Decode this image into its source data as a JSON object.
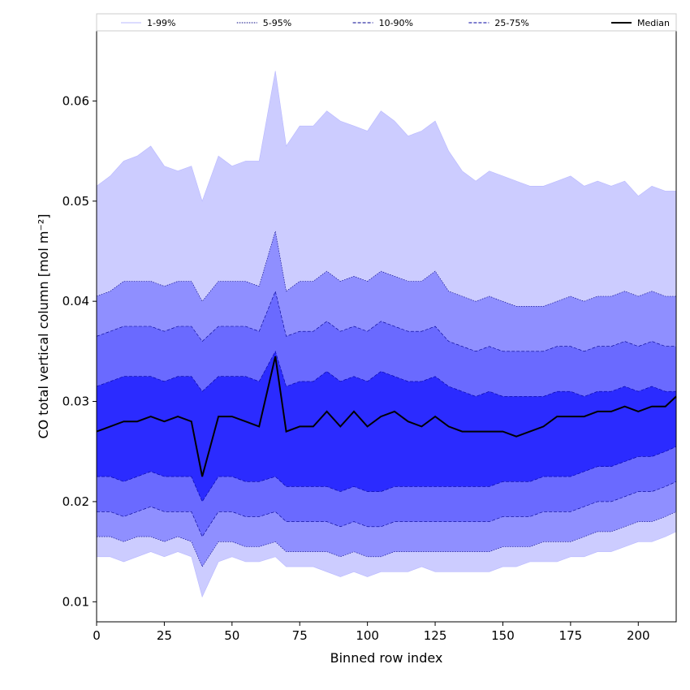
{
  "chart_data": {
    "type": "area",
    "xlabel": "Binned row index",
    "ylabel": "CO total vertical column [mol m⁻²]",
    "xlim": [
      0,
      214
    ],
    "ylim": [
      0.008,
      0.067
    ],
    "xticks": [
      0,
      25,
      50,
      75,
      100,
      125,
      150,
      175,
      200
    ],
    "yticks": [
      0.01,
      0.02,
      0.03,
      0.04,
      0.05,
      0.06
    ],
    "xtick_labels": [
      "0",
      "25",
      "50",
      "75",
      "100",
      "125",
      "150",
      "175",
      "200"
    ],
    "ytick_labels": [
      "0.01",
      "0.02",
      "0.03",
      "0.04",
      "0.05",
      "0.06"
    ],
    "grid": false,
    "legend_position": "top, above plot, single row",
    "legend": [
      {
        "label": "1-99%",
        "color": "#ccccff",
        "style": "thin solid"
      },
      {
        "label": "5-95%",
        "color": "#8f8fff",
        "style": "thin dotted"
      },
      {
        "label": "10-90%",
        "color": "#6a6aff",
        "style": "dashed"
      },
      {
        "label": "25-75%",
        "color": "#2b2bff",
        "style": "dashed"
      },
      {
        "label": "Median",
        "color": "#000000",
        "style": "solid"
      }
    ],
    "x": [
      0,
      5,
      10,
      15,
      20,
      25,
      30,
      35,
      39,
      45,
      50,
      55,
      60,
      66,
      70,
      75,
      80,
      85,
      90,
      95,
      100,
      105,
      110,
      115,
      120,
      125,
      130,
      135,
      140,
      145,
      150,
      155,
      160,
      165,
      170,
      175,
      180,
      185,
      190,
      195,
      200,
      205,
      210,
      214
    ],
    "series": [
      {
        "name": "1-99%",
        "lower": [
          0.0145,
          0.0145,
          0.014,
          0.0145,
          0.015,
          0.0145,
          0.015,
          0.0145,
          0.0105,
          0.014,
          0.0145,
          0.014,
          0.014,
          0.0145,
          0.0135,
          0.0135,
          0.0135,
          0.013,
          0.0125,
          0.013,
          0.0125,
          0.013,
          0.013,
          0.013,
          0.0135,
          0.013,
          0.013,
          0.013,
          0.013,
          0.013,
          0.0135,
          0.0135,
          0.014,
          0.014,
          0.014,
          0.0145,
          0.0145,
          0.015,
          0.015,
          0.0155,
          0.016,
          0.016,
          0.0165,
          0.017
        ],
        "upper": [
          0.0515,
          0.0525,
          0.054,
          0.0545,
          0.0555,
          0.0535,
          0.053,
          0.0535,
          0.05,
          0.0545,
          0.0535,
          0.054,
          0.054,
          0.063,
          0.0555,
          0.0575,
          0.0575,
          0.059,
          0.058,
          0.0575,
          0.057,
          0.059,
          0.058,
          0.0565,
          0.057,
          0.058,
          0.055,
          0.053,
          0.052,
          0.053,
          0.0525,
          0.052,
          0.0515,
          0.0515,
          0.052,
          0.0525,
          0.0515,
          0.052,
          0.0515,
          0.052,
          0.0505,
          0.0515,
          0.051,
          0.051
        ]
      },
      {
        "name": "5-95%",
        "lower": [
          0.0165,
          0.0165,
          0.016,
          0.0165,
          0.0165,
          0.016,
          0.0165,
          0.016,
          0.0135,
          0.016,
          0.016,
          0.0155,
          0.0155,
          0.016,
          0.015,
          0.015,
          0.015,
          0.015,
          0.0145,
          0.015,
          0.0145,
          0.0145,
          0.015,
          0.015,
          0.015,
          0.015,
          0.015,
          0.015,
          0.015,
          0.015,
          0.0155,
          0.0155,
          0.0155,
          0.016,
          0.016,
          0.016,
          0.0165,
          0.017,
          0.017,
          0.0175,
          0.018,
          0.018,
          0.0185,
          0.019
        ],
        "upper": [
          0.0405,
          0.041,
          0.042,
          0.042,
          0.042,
          0.0415,
          0.042,
          0.042,
          0.04,
          0.042,
          0.042,
          0.042,
          0.0415,
          0.047,
          0.041,
          0.042,
          0.042,
          0.043,
          0.042,
          0.0425,
          0.042,
          0.043,
          0.0425,
          0.042,
          0.042,
          0.043,
          0.041,
          0.0405,
          0.04,
          0.0405,
          0.04,
          0.0395,
          0.0395,
          0.0395,
          0.04,
          0.0405,
          0.04,
          0.0405,
          0.0405,
          0.041,
          0.0405,
          0.041,
          0.0405,
          0.0405
        ]
      },
      {
        "name": "10-90%",
        "lower": [
          0.019,
          0.019,
          0.0185,
          0.019,
          0.0195,
          0.019,
          0.019,
          0.019,
          0.0165,
          0.019,
          0.019,
          0.0185,
          0.0185,
          0.019,
          0.018,
          0.018,
          0.018,
          0.018,
          0.0175,
          0.018,
          0.0175,
          0.0175,
          0.018,
          0.018,
          0.018,
          0.018,
          0.018,
          0.018,
          0.018,
          0.018,
          0.0185,
          0.0185,
          0.0185,
          0.019,
          0.019,
          0.019,
          0.0195,
          0.02,
          0.02,
          0.0205,
          0.021,
          0.021,
          0.0215,
          0.022
        ],
        "upper": [
          0.0365,
          0.037,
          0.0375,
          0.0375,
          0.0375,
          0.037,
          0.0375,
          0.0375,
          0.036,
          0.0375,
          0.0375,
          0.0375,
          0.037,
          0.041,
          0.0365,
          0.037,
          0.037,
          0.038,
          0.037,
          0.0375,
          0.037,
          0.038,
          0.0375,
          0.037,
          0.037,
          0.0375,
          0.036,
          0.0355,
          0.035,
          0.0355,
          0.035,
          0.035,
          0.035,
          0.035,
          0.0355,
          0.0355,
          0.035,
          0.0355,
          0.0355,
          0.036,
          0.0355,
          0.036,
          0.0355,
          0.0355
        ]
      },
      {
        "name": "25-75%",
        "lower": [
          0.0225,
          0.0225,
          0.022,
          0.0225,
          0.023,
          0.0225,
          0.0225,
          0.0225,
          0.02,
          0.0225,
          0.0225,
          0.022,
          0.022,
          0.0225,
          0.0215,
          0.0215,
          0.0215,
          0.0215,
          0.021,
          0.0215,
          0.021,
          0.021,
          0.0215,
          0.0215,
          0.0215,
          0.0215,
          0.0215,
          0.0215,
          0.0215,
          0.0215,
          0.022,
          0.022,
          0.022,
          0.0225,
          0.0225,
          0.0225,
          0.023,
          0.0235,
          0.0235,
          0.024,
          0.0245,
          0.0245,
          0.025,
          0.0255
        ],
        "upper": [
          0.0315,
          0.032,
          0.0325,
          0.0325,
          0.0325,
          0.032,
          0.0325,
          0.0325,
          0.031,
          0.0325,
          0.0325,
          0.0325,
          0.032,
          0.035,
          0.0315,
          0.032,
          0.032,
          0.033,
          0.032,
          0.0325,
          0.032,
          0.033,
          0.0325,
          0.032,
          0.032,
          0.0325,
          0.0315,
          0.031,
          0.0305,
          0.031,
          0.0305,
          0.0305,
          0.0305,
          0.0305,
          0.031,
          0.031,
          0.0305,
          0.031,
          0.031,
          0.0315,
          0.031,
          0.0315,
          0.031,
          0.031
        ]
      },
      {
        "name": "Median",
        "values": [
          0.027,
          0.0275,
          0.028,
          0.028,
          0.0285,
          0.028,
          0.0285,
          0.028,
          0.0225,
          0.0285,
          0.0285,
          0.028,
          0.0275,
          0.0345,
          0.027,
          0.0275,
          0.0275,
          0.029,
          0.0275,
          0.029,
          0.0275,
          0.0285,
          0.029,
          0.028,
          0.0275,
          0.0285,
          0.0275,
          0.027,
          0.027,
          0.027,
          0.027,
          0.0265,
          0.027,
          0.0275,
          0.0285,
          0.0285,
          0.0285,
          0.029,
          0.029,
          0.0295,
          0.029,
          0.0295,
          0.0295,
          0.0305
        ]
      }
    ]
  }
}
